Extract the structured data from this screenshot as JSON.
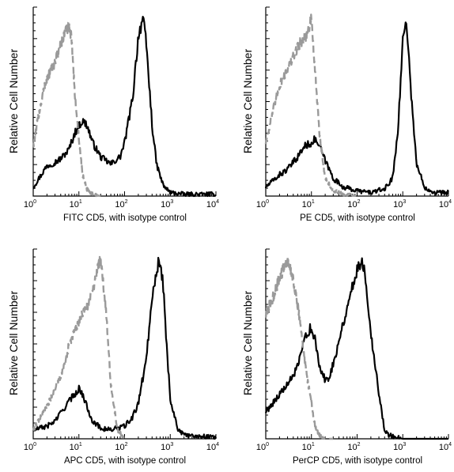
{
  "chart_data": [
    {
      "type": "line",
      "xlabel": "FITC CD5, with isotype control",
      "ylabel": "Relative Cell Number",
      "xscale": "log",
      "xlim": [
        1,
        10000
      ],
      "x_ticks": [
        "10",
        "10",
        "10",
        "10",
        "10"
      ],
      "x_tick_exps": [
        "0",
        "1",
        "2",
        "3",
        "4"
      ],
      "grid": false,
      "legend": "none",
      "series": [
        {
          "role": "sample",
          "color": "#000000",
          "x": [
            1,
            1.5,
            2,
            3,
            4,
            6,
            8,
            10,
            12,
            15,
            20,
            30,
            50,
            80,
            100,
            150,
            200,
            250,
            300,
            400,
            500,
            700,
            1000,
            2000,
            10000
          ],
          "y": [
            0.05,
            0.12,
            0.17,
            0.19,
            0.21,
            0.26,
            0.35,
            0.4,
            0.42,
            0.4,
            0.3,
            0.22,
            0.18,
            0.22,
            0.3,
            0.55,
            0.9,
            1.0,
            0.85,
            0.4,
            0.18,
            0.06,
            0.02,
            0.01,
            0.01
          ]
        },
        {
          "role": "isotype control",
          "color": "#9a9a9a",
          "x": [
            1,
            1.3,
            1.7,
            2,
            3,
            4,
            5,
            6,
            7,
            8,
            10,
            12,
            15,
            20,
            30
          ],
          "y": [
            0.28,
            0.45,
            0.6,
            0.66,
            0.75,
            0.85,
            0.92,
            0.95,
            0.88,
            0.6,
            0.32,
            0.12,
            0.04,
            0.01,
            0.0
          ]
        }
      ]
    },
    {
      "type": "line",
      "xlabel": "PE CD5, with isotype control",
      "ylabel": "Relative Cell Number",
      "xscale": "log",
      "xlim": [
        1,
        10000
      ],
      "x_ticks": [
        "10",
        "10",
        "10",
        "10",
        "10"
      ],
      "x_tick_exps": [
        "0",
        "1",
        "2",
        "3",
        "4"
      ],
      "grid": false,
      "legend": "none",
      "series": [
        {
          "role": "sample",
          "color": "#000000",
          "x": [
            1,
            2,
            3,
            5,
            7,
            10,
            12,
            15,
            20,
            30,
            50,
            100,
            200,
            400,
            600,
            800,
            1000,
            1200,
            1500,
            2000,
            3000,
            5000,
            10000
          ],
          "y": [
            0.05,
            0.12,
            0.15,
            0.22,
            0.28,
            0.3,
            0.32,
            0.28,
            0.2,
            0.1,
            0.05,
            0.03,
            0.02,
            0.04,
            0.1,
            0.4,
            0.88,
            1.0,
            0.6,
            0.18,
            0.05,
            0.02,
            0.02
          ]
        },
        {
          "role": "isotype control",
          "color": "#9a9a9a",
          "x": [
            1,
            1.5,
            2,
            3,
            4,
            5,
            6,
            8,
            10,
            12,
            15,
            20,
            30,
            50,
            100
          ],
          "y": [
            0.3,
            0.5,
            0.62,
            0.72,
            0.78,
            0.84,
            0.87,
            0.91,
            1.0,
            0.7,
            0.35,
            0.1,
            0.03,
            0.01,
            0.0
          ]
        }
      ]
    },
    {
      "type": "line",
      "xlabel": "APC CD5, with isotype control",
      "ylabel": "Relative Cell Number",
      "xscale": "log",
      "xlim": [
        1,
        10000
      ],
      "x_ticks": [
        "10",
        "10",
        "10",
        "10",
        "10"
      ],
      "x_tick_exps": [
        "0",
        "1",
        "2",
        "3",
        "4"
      ],
      "grid": false,
      "legend": "none",
      "series": [
        {
          "role": "sample",
          "color": "#000000",
          "x": [
            1,
            2,
            3,
            5,
            8,
            10,
            12,
            15,
            20,
            30,
            50,
            100,
            150,
            200,
            300,
            400,
            500,
            600,
            700,
            800,
            1000,
            1500,
            2000,
            10000
          ],
          "y": [
            0.05,
            0.07,
            0.1,
            0.18,
            0.25,
            0.28,
            0.25,
            0.18,
            0.1,
            0.06,
            0.05,
            0.07,
            0.12,
            0.2,
            0.45,
            0.8,
            0.95,
            1.0,
            0.85,
            0.6,
            0.22,
            0.05,
            0.02,
            0.01
          ]
        },
        {
          "role": "isotype control",
          "color": "#9a9a9a",
          "x": [
            1,
            2,
            3,
            4,
            5,
            6,
            8,
            10,
            12,
            15,
            20,
            25,
            30,
            40,
            50,
            70,
            100
          ],
          "y": [
            0.05,
            0.18,
            0.28,
            0.35,
            0.42,
            0.52,
            0.6,
            0.65,
            0.7,
            0.74,
            0.82,
            0.95,
            1.0,
            0.7,
            0.3,
            0.05,
            0.0
          ]
        }
      ]
    },
    {
      "type": "line",
      "xlabel": "PerCP CD5, with isotype control",
      "ylabel": "Relative Cell Number",
      "xscale": "log",
      "xlim": [
        1,
        10000
      ],
      "x_ticks": [
        "10",
        "10",
        "10",
        "10",
        "10"
      ],
      "x_tick_exps": [
        "0",
        "1",
        "2",
        "3",
        "4"
      ],
      "grid": false,
      "legend": "none",
      "series": [
        {
          "role": "sample",
          "color": "#000000",
          "x": [
            1,
            2,
            3,
            5,
            7,
            8,
            10,
            12,
            15,
            20,
            25,
            30,
            40,
            50,
            70,
            100,
            130,
            150,
            200,
            300,
            400,
            500,
            700,
            1000,
            10000
          ],
          "y": [
            0.15,
            0.25,
            0.3,
            0.4,
            0.55,
            0.6,
            0.62,
            0.55,
            0.4,
            0.33,
            0.35,
            0.42,
            0.55,
            0.65,
            0.8,
            0.95,
            1.0,
            0.92,
            0.6,
            0.25,
            0.05,
            0.02,
            0.01,
            0.0,
            0.0
          ]
        },
        {
          "role": "isotype control",
          "color": "#9a9a9a",
          "x": [
            1,
            1.5,
            2,
            3,
            4,
            5,
            6,
            7,
            8,
            10,
            12,
            15,
            20,
            30
          ],
          "y": [
            0.7,
            0.8,
            0.9,
            1.0,
            0.9,
            0.75,
            0.6,
            0.45,
            0.35,
            0.2,
            0.07,
            0.02,
            0.0,
            0.0
          ]
        }
      ]
    }
  ]
}
